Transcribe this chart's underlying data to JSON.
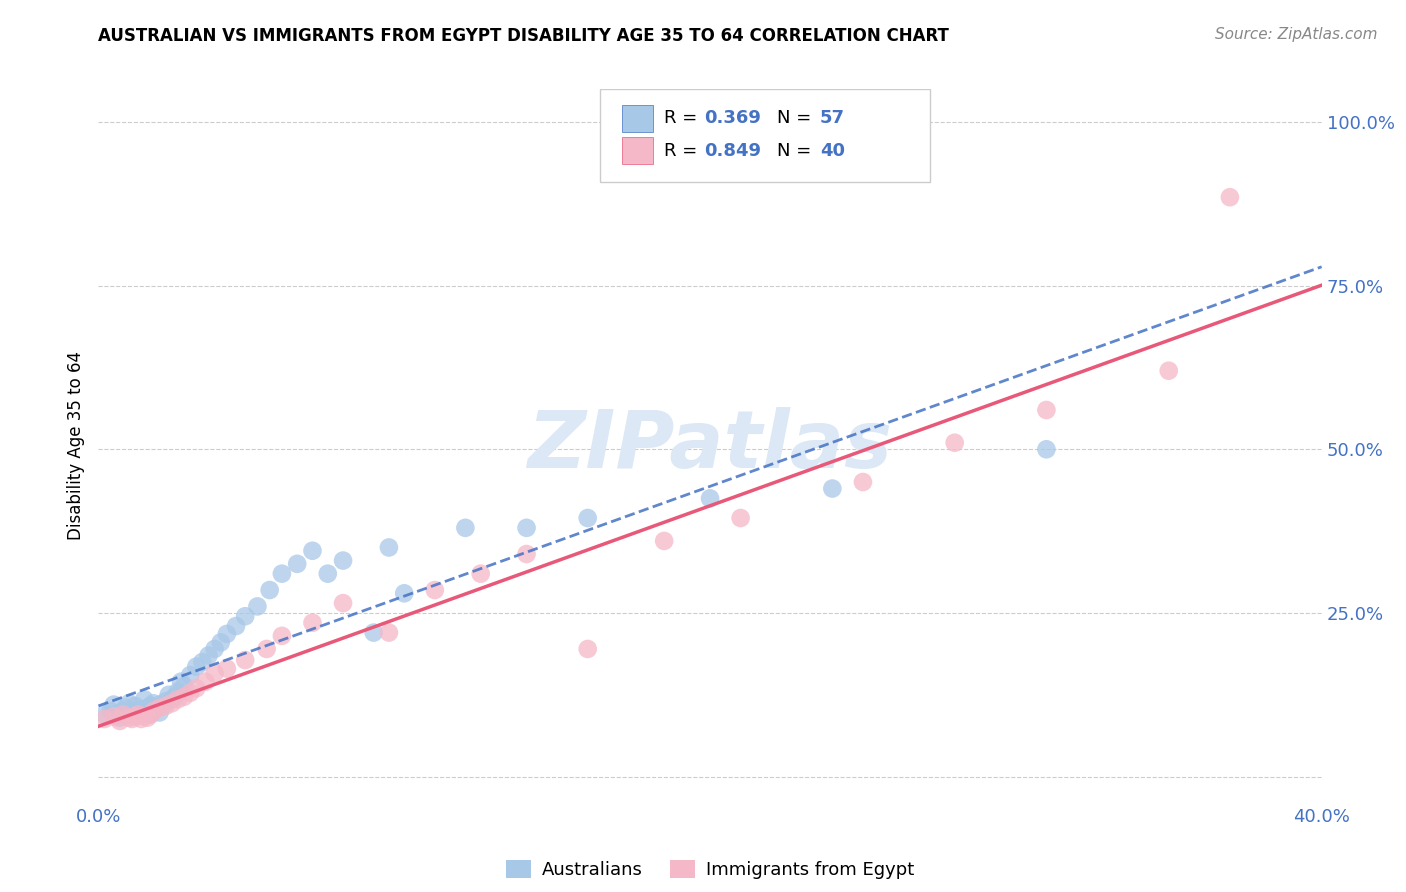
{
  "title": "AUSTRALIAN VS IMMIGRANTS FROM EGYPT DISABILITY AGE 35 TO 64 CORRELATION CHART",
  "source": "Source: ZipAtlas.com",
  "ylabel": "Disability Age 35 to 64",
  "xmin": 0.0,
  "xmax": 0.4,
  "ymin": -0.04,
  "ymax": 1.05,
  "R_aus": 0.369,
  "N_aus": 57,
  "R_egypt": 0.849,
  "N_egypt": 40,
  "color_aus": "#a8c8e8",
  "color_egypt": "#f5b8c8",
  "line_color_aus": "#4472c4",
  "line_color_egypt": "#e85878",
  "legend_label_aus": "Australians",
  "legend_label_egypt": "Immigrants from Egypt",
  "aus_x": [
    0.002,
    0.004,
    0.005,
    0.006,
    0.007,
    0.008,
    0.009,
    0.01,
    0.01,
    0.011,
    0.012,
    0.012,
    0.013,
    0.014,
    0.014,
    0.015,
    0.015,
    0.016,
    0.017,
    0.017,
    0.018,
    0.019,
    0.02,
    0.02,
    0.021,
    0.022,
    0.023,
    0.024,
    0.025,
    0.026,
    0.027,
    0.028,
    0.03,
    0.032,
    0.034,
    0.036,
    0.038,
    0.04,
    0.042,
    0.045,
    0.048,
    0.052,
    0.056,
    0.06,
    0.065,
    0.07,
    0.075,
    0.08,
    0.09,
    0.095,
    0.1,
    0.12,
    0.14,
    0.16,
    0.2,
    0.24,
    0.31
  ],
  "aus_y": [
    0.095,
    0.1,
    0.11,
    0.095,
    0.09,
    0.1,
    0.105,
    0.095,
    0.112,
    0.1,
    0.108,
    0.095,
    0.1,
    0.102,
    0.095,
    0.1,
    0.118,
    0.105,
    0.095,
    0.108,
    0.112,
    0.105,
    0.11,
    0.098,
    0.108,
    0.115,
    0.125,
    0.118,
    0.122,
    0.13,
    0.145,
    0.138,
    0.155,
    0.168,
    0.175,
    0.185,
    0.195,
    0.205,
    0.218,
    0.23,
    0.245,
    0.26,
    0.285,
    0.31,
    0.325,
    0.345,
    0.31,
    0.33,
    0.22,
    0.35,
    0.28,
    0.38,
    0.38,
    0.395,
    0.425,
    0.44,
    0.5
  ],
  "egypt_x": [
    0.002,
    0.005,
    0.007,
    0.008,
    0.01,
    0.011,
    0.012,
    0.013,
    0.014,
    0.015,
    0.016,
    0.017,
    0.018,
    0.02,
    0.022,
    0.024,
    0.026,
    0.028,
    0.03,
    0.032,
    0.035,
    0.038,
    0.042,
    0.048,
    0.055,
    0.06,
    0.07,
    0.08,
    0.095,
    0.11,
    0.125,
    0.14,
    0.16,
    0.185,
    0.21,
    0.25,
    0.28,
    0.31,
    0.35,
    0.37
  ],
  "egypt_y": [
    0.088,
    0.092,
    0.085,
    0.095,
    0.09,
    0.088,
    0.092,
    0.095,
    0.088,
    0.092,
    0.09,
    0.095,
    0.1,
    0.105,
    0.108,
    0.112,
    0.118,
    0.122,
    0.128,
    0.135,
    0.145,
    0.158,
    0.165,
    0.178,
    0.195,
    0.215,
    0.235,
    0.265,
    0.22,
    0.285,
    0.31,
    0.34,
    0.195,
    0.36,
    0.395,
    0.45,
    0.51,
    0.56,
    0.62,
    0.885
  ]
}
